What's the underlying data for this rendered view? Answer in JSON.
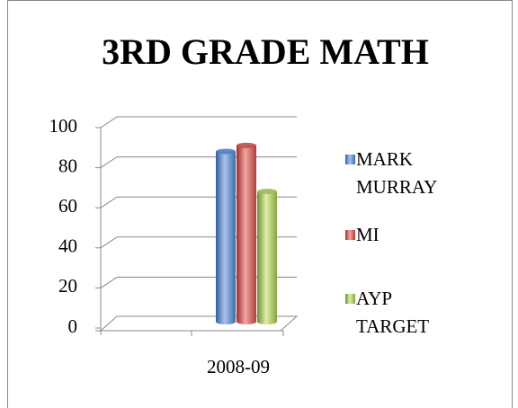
{
  "chart_data": {
    "type": "bar",
    "title": "3RD GRADE MATH",
    "categories": [
      "2008-09"
    ],
    "series": [
      {
        "name": "MARK MURRAY",
        "color": "#4f81bd",
        "values": [
          85
        ]
      },
      {
        "name": "MI",
        "color": "#c0504d",
        "values": [
          88
        ]
      },
      {
        "name": "AYP TARGET",
        "color": "#9bbb59",
        "values": [
          65
        ]
      }
    ],
    "ylim": [
      0,
      100
    ],
    "yticks": [
      0,
      20,
      40,
      60,
      80,
      100
    ],
    "grid": true,
    "legend": "right"
  }
}
